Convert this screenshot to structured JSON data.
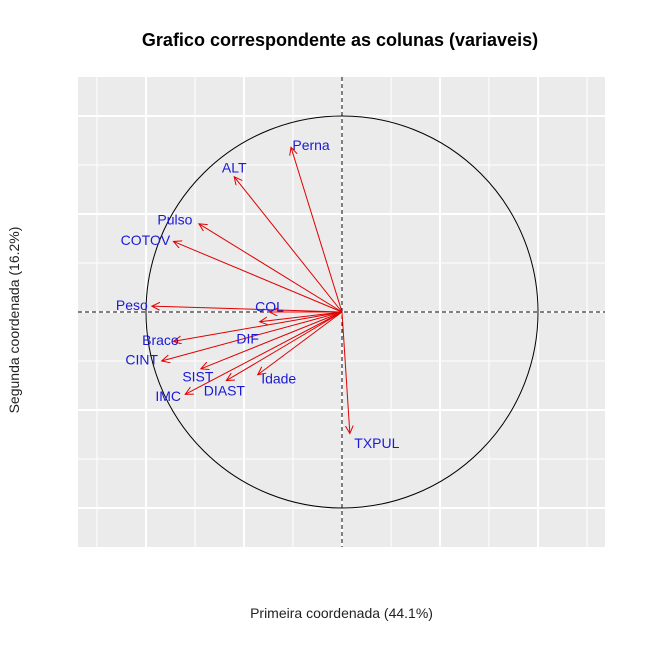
{
  "chart_data": {
    "type": "scatter",
    "title": "Grafico correspondente as colunas (variaveis)",
    "xlabel": "Primeira coordenada (44.1%)",
    "ylabel": "Segunda coordenada (16.2%)",
    "xlim": [
      -1.35,
      1.35
    ],
    "ylim": [
      -1.2,
      1.2
    ],
    "grid": true,
    "reference_lines": [
      "x=0",
      "y=0"
    ],
    "unit_circle": true,
    "arrow_color": "#e00000",
    "label_color": "#1a1ad6",
    "background_color": "#ebebeb",
    "variables": [
      {
        "name": "Perna",
        "x": -0.26,
        "y": 0.84
      },
      {
        "name": "ALT",
        "x": -0.55,
        "y": 0.69
      },
      {
        "name": "Pulso",
        "x": -0.73,
        "y": 0.45
      },
      {
        "name": "COTOV",
        "x": -0.86,
        "y": 0.36
      },
      {
        "name": "Peso",
        "x": -0.97,
        "y": 0.03
      },
      {
        "name": "COL",
        "x": -0.37,
        "y": 0.0
      },
      {
        "name": "DIF",
        "x": -0.42,
        "y": -0.05
      },
      {
        "name": "Braco",
        "x": -0.86,
        "y": -0.15
      },
      {
        "name": "SIST",
        "x": -0.72,
        "y": -0.29
      },
      {
        "name": "CINT",
        "x": -0.92,
        "y": -0.25
      },
      {
        "name": "Idade",
        "x": -0.43,
        "y": -0.32
      },
      {
        "name": "DIAST",
        "x": -0.59,
        "y": -0.35
      },
      {
        "name": "IMC",
        "x": -0.8,
        "y": -0.42
      },
      {
        "name": "TXPUL",
        "x": 0.04,
        "y": -0.62
      }
    ]
  }
}
